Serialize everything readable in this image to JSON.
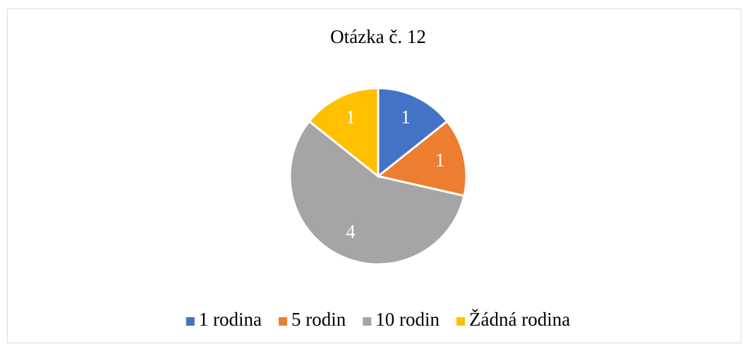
{
  "chart_data": {
    "type": "pie",
    "title": "Otázka č. 12",
    "categories": [
      "1 rodina",
      "5 rodin",
      "10 rodin",
      "Žádná rodina"
    ],
    "values": [
      1,
      1,
      4,
      1
    ],
    "colors": [
      "#4472c4",
      "#ed7d31",
      "#a5a5a5",
      "#ffc000"
    ],
    "legend": "bottom"
  }
}
